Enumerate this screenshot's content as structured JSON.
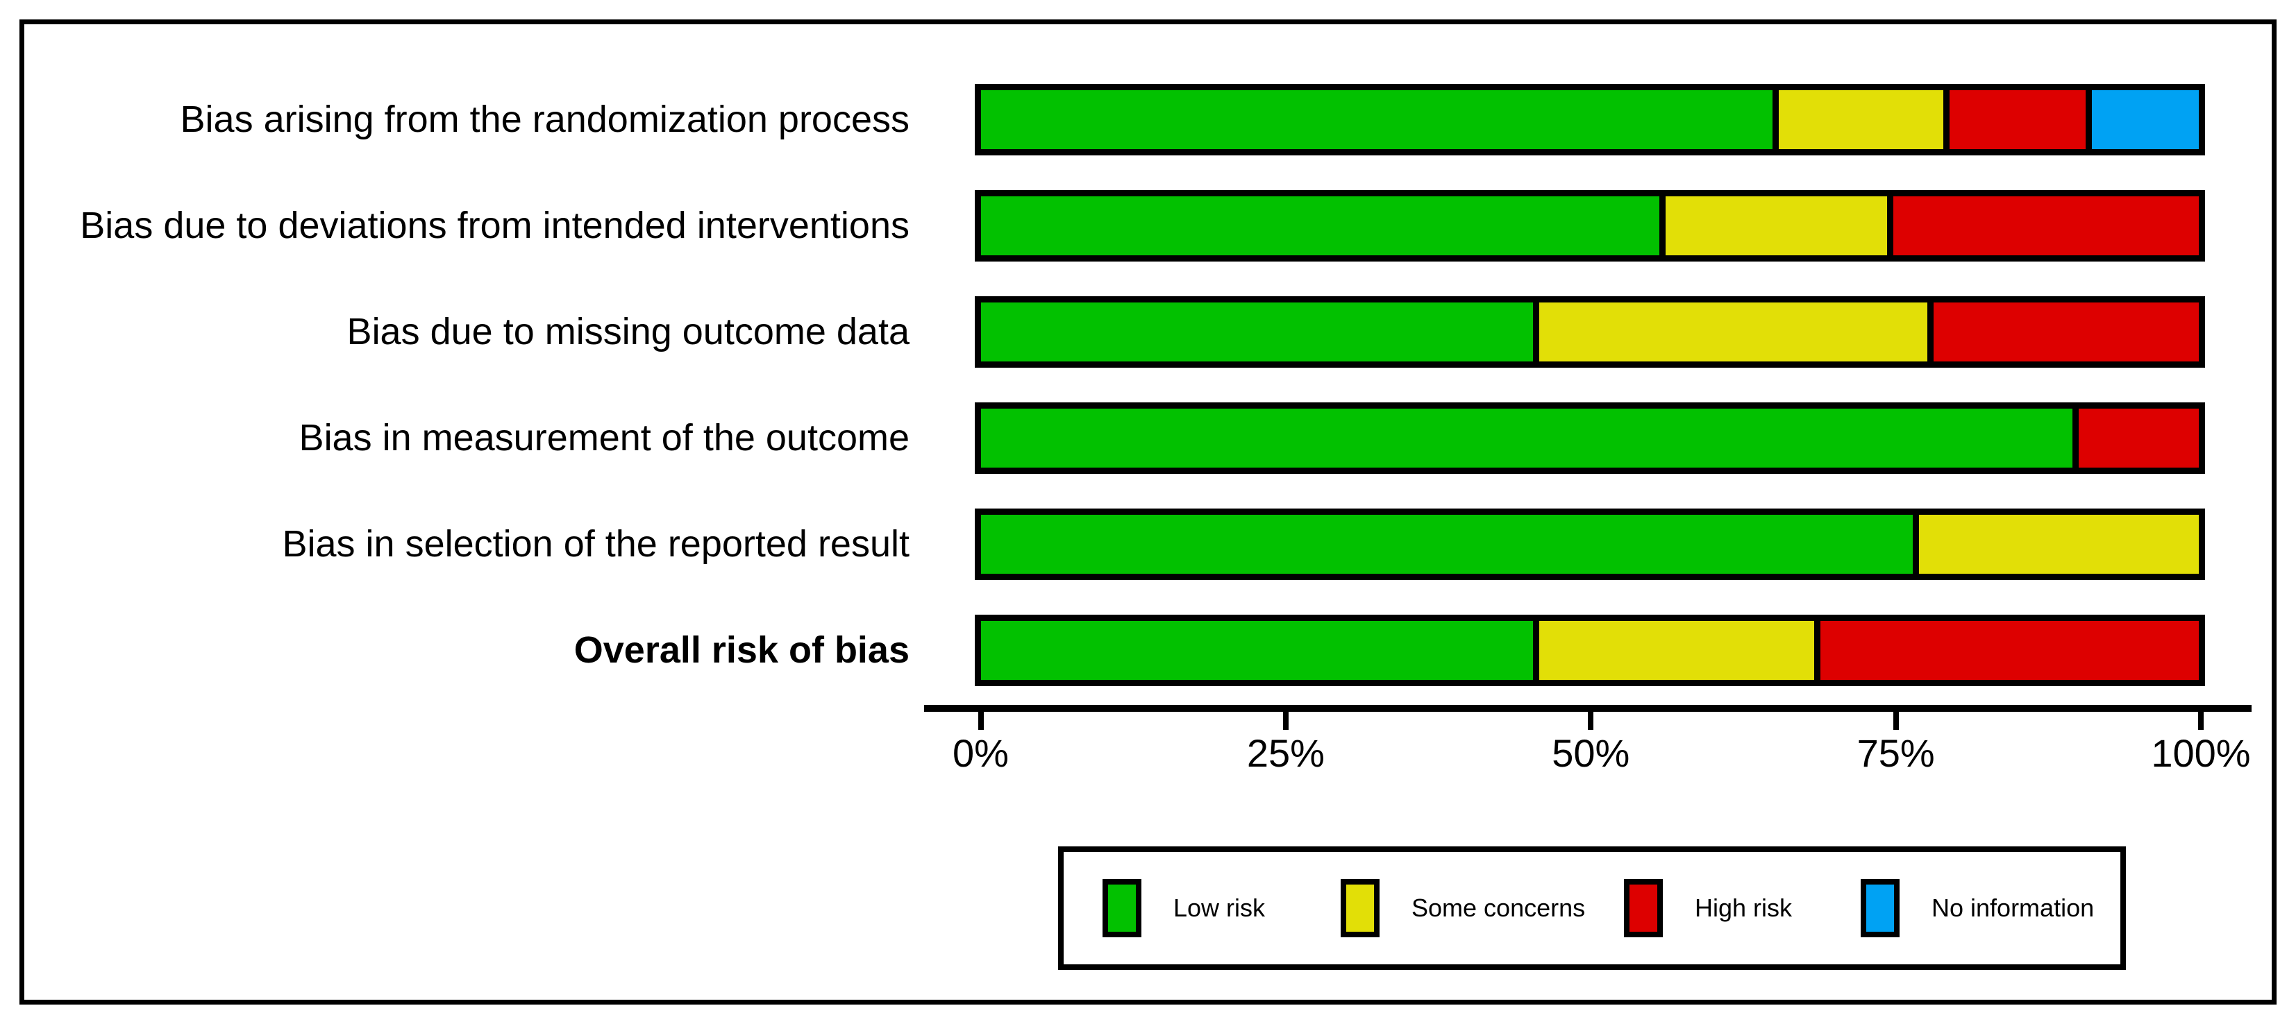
{
  "figure": {
    "title": "",
    "type_note": "risk-of-bias summary barplot"
  },
  "chart_data": {
    "type": "bar",
    "orientation": "horizontal",
    "stacked": true,
    "grid": false,
    "title": "",
    "xlabel": "",
    "ylabel": "",
    "xlim": [
      0,
      100
    ],
    "x_ticks": [
      {
        "value": 0,
        "label": "0%"
      },
      {
        "value": 25,
        "label": "25%"
      },
      {
        "value": 50,
        "label": "50%"
      },
      {
        "value": 75,
        "label": "75%"
      },
      {
        "value": 100,
        "label": "100%"
      }
    ],
    "categories": [
      {
        "label": "Bias arising from the randomization process",
        "bold": false
      },
      {
        "label": "Bias due to deviations from intended interventions",
        "bold": false
      },
      {
        "label": "Bias due to missing outcome data",
        "bold": false
      },
      {
        "label": "Bias in measurement of the outcome",
        "bold": false
      },
      {
        "label": "Bias in selection of the reported result",
        "bold": false
      },
      {
        "label": "Overall risk of bias",
        "bold": true
      }
    ],
    "series": [
      {
        "name": "Low risk",
        "color": "#02C100",
        "values": [
          65.0,
          55.7,
          45.3,
          89.6,
          76.5,
          45.3
        ]
      },
      {
        "name": "Some concerns",
        "color": "#E2DF07",
        "values": [
          14.0,
          18.7,
          32.4,
          0,
          23.5,
          23.1
        ]
      },
      {
        "name": "High risk",
        "color": "#DD0000",
        "values": [
          11.7,
          25.6,
          22.3,
          10.4,
          0,
          31.6
        ]
      },
      {
        "name": "No information",
        "color": "#00A2F3",
        "values": [
          9.3,
          0,
          0,
          0,
          0,
          0
        ]
      }
    ],
    "legend": {
      "position": "bottom",
      "entries": [
        "Low risk",
        "Some concerns",
        "High risk",
        "No information"
      ]
    }
  }
}
